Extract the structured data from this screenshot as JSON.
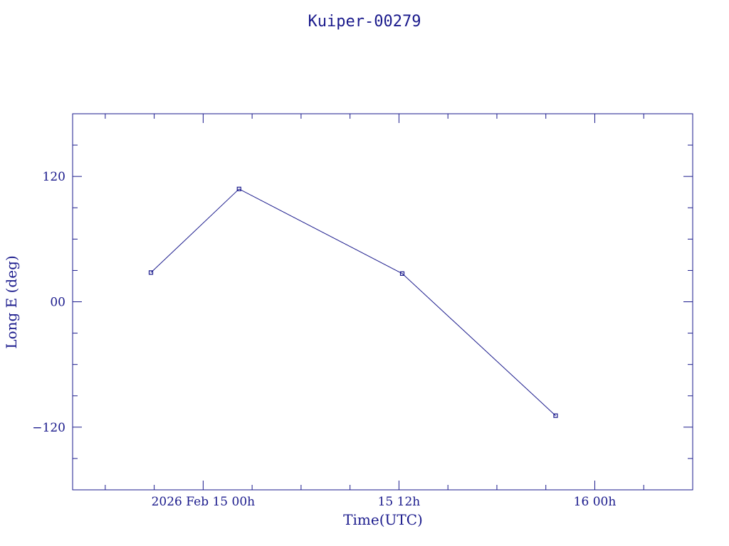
{
  "chart_data": {
    "type": "line",
    "title": "Kuiper-00279",
    "xlabel": "Time(UTC)",
    "ylabel": "Long E (deg)",
    "xlim_hours": [
      -8,
      30
    ],
    "ylim": [
      -180,
      180
    ],
    "x_ticks": [
      {
        "hours": 0,
        "label": "2026 Feb 15  00h"
      },
      {
        "hours": 12,
        "label": "15  12h"
      },
      {
        "hours": 24,
        "label": "16  00h"
      }
    ],
    "y_ticks": [
      {
        "value": 120,
        "label": "120"
      },
      {
        "value": 0,
        "label": "00"
      },
      {
        "value": -120,
        "label": "−120"
      }
    ],
    "series": [
      {
        "x_hours": [
          -3.2,
          2.2,
          12.2,
          21.6
        ],
        "values": [
          28,
          108,
          27,
          -109
        ]
      }
    ],
    "grid": false,
    "line_color": "#1a1a8c"
  }
}
